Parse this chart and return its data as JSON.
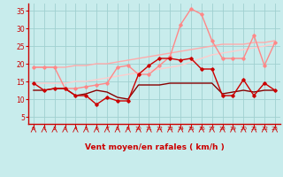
{
  "x": [
    0,
    1,
    2,
    3,
    4,
    5,
    6,
    7,
    8,
    9,
    10,
    11,
    12,
    13,
    14,
    15,
    16,
    17,
    18,
    19,
    20,
    21,
    22,
    23
  ],
  "lines": [
    {
      "y": [
        14.5,
        12.5,
        13.0,
        13.0,
        11.0,
        11.0,
        8.5,
        10.5,
        9.5,
        9.5,
        17.0,
        19.5,
        21.5,
        21.5,
        21.0,
        21.5,
        18.5,
        18.5,
        11.0,
        11.0,
        15.5,
        11.0,
        14.5,
        12.5
      ],
      "color": "#cc0000",
      "lw": 1.0,
      "marker": "D",
      "ms": 1.8,
      "zorder": 5
    },
    {
      "y": [
        12.5,
        12.5,
        13.0,
        13.0,
        11.0,
        11.5,
        12.5,
        12.0,
        10.5,
        10.0,
        14.0,
        14.0,
        14.0,
        14.5,
        14.5,
        14.5,
        14.5,
        14.5,
        11.5,
        12.0,
        12.5,
        12.0,
        12.5,
        12.5
      ],
      "color": "#880000",
      "lw": 1.0,
      "marker": null,
      "ms": 0,
      "zorder": 4
    },
    {
      "y": [
        19.0,
        19.0,
        19.0,
        13.0,
        13.0,
        13.5,
        14.0,
        14.5,
        19.0,
        19.5,
        17.0,
        17.0,
        19.5,
        22.0,
        31.0,
        35.5,
        34.0,
        26.5,
        21.5,
        21.5,
        21.5,
        28.0,
        19.5,
        26.0
      ],
      "color": "#ff8888",
      "lw": 1.0,
      "marker": "D",
      "ms": 1.8,
      "zorder": 3
    },
    {
      "y": [
        19.0,
        19.0,
        19.0,
        19.0,
        19.5,
        19.5,
        20.0,
        20.0,
        20.5,
        21.0,
        21.5,
        22.0,
        22.5,
        23.0,
        23.5,
        24.0,
        24.5,
        25.0,
        25.5,
        25.5,
        25.5,
        26.0,
        26.0,
        26.5
      ],
      "color": "#ffaaaa",
      "lw": 1.0,
      "marker": null,
      "ms": 0,
      "zorder": 2
    },
    {
      "y": [
        14.5,
        14.5,
        14.5,
        14.5,
        15.0,
        15.0,
        15.5,
        16.0,
        16.5,
        17.0,
        17.5,
        18.0,
        18.5,
        19.0,
        19.5,
        20.5,
        21.5,
        22.5,
        23.0,
        23.5,
        24.0,
        24.5,
        25.0,
        25.5
      ],
      "color": "#ffcccc",
      "lw": 1.0,
      "marker": null,
      "ms": 0,
      "zorder": 2
    }
  ],
  "xlabel": "Vent moyen/en rafales ( km/h )",
  "xlim": [
    -0.5,
    23.5
  ],
  "ylim": [
    3,
    37
  ],
  "yticks": [
    5,
    10,
    15,
    20,
    25,
    30,
    35
  ],
  "xticks": [
    0,
    1,
    2,
    3,
    4,
    5,
    6,
    7,
    8,
    9,
    10,
    11,
    12,
    13,
    14,
    15,
    16,
    17,
    18,
    19,
    20,
    21,
    22,
    23
  ],
  "bg_color": "#c8ecec",
  "grid_color": "#a0d0d0",
  "tick_color": "#cc0000",
  "label_color": "#cc0000",
  "arrow_color": "#cc0000",
  "spine_color": "#cc0000"
}
